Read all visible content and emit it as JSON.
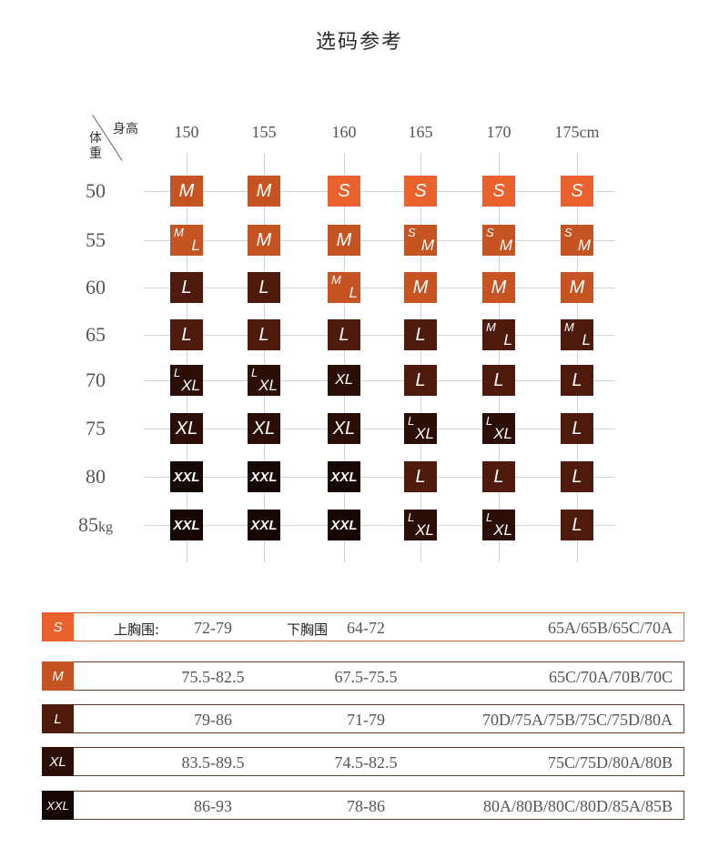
{
  "title": "选码参考",
  "corner": {
    "top": "身高",
    "bottom": "体重"
  },
  "colors": {
    "S": "#e9612c",
    "M": "#c65422",
    "L": "#4e1a0c",
    "XL": "#2b0e06",
    "XXL": "#160604",
    "border": "#c86b3c"
  },
  "heights": [
    "150",
    "155",
    "160",
    "165",
    "170",
    "175cm"
  ],
  "weights": [
    {
      "num": "50",
      "unit": ""
    },
    {
      "num": "55",
      "unit": ""
    },
    {
      "num": "60",
      "unit": ""
    },
    {
      "num": "65",
      "unit": ""
    },
    {
      "num": "70",
      "unit": ""
    },
    {
      "num": "75",
      "unit": ""
    },
    {
      "num": "80",
      "unit": ""
    },
    {
      "num": "85",
      "unit": "kg"
    }
  ],
  "grid": [
    [
      {
        "main": "M",
        "c": "M"
      },
      {
        "main": "M",
        "c": "M"
      },
      {
        "main": "S",
        "c": "S"
      },
      {
        "main": "S",
        "c": "S"
      },
      {
        "main": "S",
        "c": "S"
      },
      {
        "main": "S",
        "c": "S"
      }
    ],
    [
      {
        "sup": "M",
        "sub": "L",
        "c": "M"
      },
      {
        "main": "M",
        "c": "M"
      },
      {
        "main": "M",
        "c": "M"
      },
      {
        "sup": "S",
        "sub": "M",
        "c": "M"
      },
      {
        "sup": "S",
        "sub": "M",
        "c": "M"
      },
      {
        "sup": "S",
        "sub": "M",
        "c": "M"
      }
    ],
    [
      {
        "main": "L",
        "c": "L"
      },
      {
        "main": "L",
        "c": "L"
      },
      {
        "sup": "M",
        "sub": "L",
        "c": "M"
      },
      {
        "main": "M",
        "c": "M"
      },
      {
        "main": "M",
        "c": "M"
      },
      {
        "main": "M",
        "c": "M"
      }
    ],
    [
      {
        "main": "L",
        "c": "L"
      },
      {
        "main": "L",
        "c": "L"
      },
      {
        "main": "L",
        "c": "L"
      },
      {
        "main": "L",
        "c": "L"
      },
      {
        "sup": "M",
        "sub": "L",
        "c": "L"
      },
      {
        "sup": "M",
        "sub": "L",
        "c": "L"
      }
    ],
    [
      {
        "sup": "L",
        "sub": "XL",
        "c": "XL"
      },
      {
        "sup": "L",
        "sub": "XL",
        "c": "XL"
      },
      {
        "main": "XL",
        "c": "XL",
        "small": true
      },
      {
        "main": "L",
        "c": "L"
      },
      {
        "main": "L",
        "c": "L"
      },
      {
        "main": "L",
        "c": "L"
      }
    ],
    [
      {
        "main": "XL",
        "c": "XL"
      },
      {
        "main": "XL",
        "c": "XL"
      },
      {
        "main": "XL",
        "c": "XL"
      },
      {
        "sup": "L",
        "sub": "XL",
        "c": "XL"
      },
      {
        "sup": "L",
        "sub": "XL",
        "c": "XL"
      },
      {
        "main": "L",
        "c": "L"
      }
    ],
    [
      {
        "main": "XXL",
        "c": "XXL"
      },
      {
        "main": "XXL",
        "c": "XXL"
      },
      {
        "main": "XXL",
        "c": "XXL"
      },
      {
        "main": "L",
        "c": "L"
      },
      {
        "main": "L",
        "c": "L"
      },
      {
        "main": "L",
        "c": "L"
      }
    ],
    [
      {
        "main": "XXL",
        "c": "XXL"
      },
      {
        "main": "XXL",
        "c": "XXL"
      },
      {
        "main": "XXL",
        "c": "XXL"
      },
      {
        "sup": "L",
        "sub": "XL",
        "c": "XL"
      },
      {
        "sup": "L",
        "sub": "XL",
        "c": "XL"
      },
      {
        "main": "L",
        "c": "L"
      }
    ]
  ],
  "legend": {
    "upper_label": "上胸围:",
    "under_label": "下胸围",
    "rows": [
      {
        "size": "S",
        "upper": "72-79",
        "under": "64-72",
        "cups": "65A/65B/65C/70A"
      },
      {
        "size": "M",
        "upper": "75.5-82.5",
        "under": "67.5-75.5",
        "cups": "65C/70A/70B/70C"
      },
      {
        "size": "L",
        "upper": "79-86",
        "under": "71-79",
        "cups": "70D/75A/75B/75C/75D/80A"
      },
      {
        "size": "XL",
        "upper": "83.5-89.5",
        "under": "74.5-82.5",
        "cups": "75C/75D/80A/80B"
      },
      {
        "size": "XXL",
        "upper": "86-93",
        "under": "78-86",
        "cups": "80A/80B/80C/80D/85A/85B"
      }
    ]
  }
}
